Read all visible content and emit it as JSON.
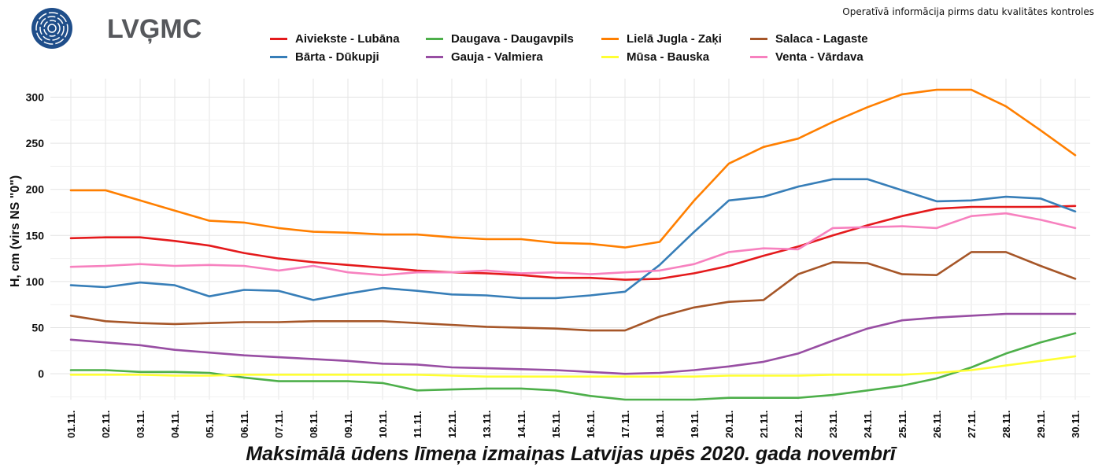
{
  "logo": {
    "text": "LVĢMC",
    "color": "#1f4e8a"
  },
  "notice": "Operatīvā informācija pirms datu kvalitātes kontroles",
  "chart_data": {
    "type": "line",
    "title": "Maksimālā ūdens līmeņa izmaiņas Latvijas upēs 2020. gada novembrī",
    "xlabel": "",
    "ylabel": "H, cm (virs NS \"0\")",
    "ylim": [
      -28,
      320
    ],
    "yticks": [
      0,
      50,
      100,
      150,
      200,
      250,
      300
    ],
    "grid": true,
    "legend_position": "top",
    "categories": [
      "01.11.",
      "02.11.",
      "03.11.",
      "04.11.",
      "05.11.",
      "06.11.",
      "07.11.",
      "08.11.",
      "09.11.",
      "10.11.",
      "11.11.",
      "12.11.",
      "13.11.",
      "14.11.",
      "15.11.",
      "16.11.",
      "17.11.",
      "18.11.",
      "19.11.",
      "20.11.",
      "21.11.",
      "22.11.",
      "23.11.",
      "24.11.",
      "25.11.",
      "26.11.",
      "27.11.",
      "28.11.",
      "29.11.",
      "30.11."
    ],
    "series": [
      {
        "name": "Aiviekste - Lubāna",
        "color": "#e41a1c",
        "values": [
          147,
          148,
          148,
          144,
          139,
          131,
          125,
          121,
          118,
          115,
          112,
          110,
          109,
          107,
          104,
          104,
          102,
          103,
          109,
          117,
          128,
          138,
          150,
          161,
          171,
          179,
          181,
          181,
          181,
          182
        ]
      },
      {
        "name": "Bārta - Dūkupji",
        "color": "#377eb8",
        "values": [
          96,
          94,
          99,
          96,
          84,
          91,
          90,
          80,
          87,
          93,
          90,
          86,
          85,
          82,
          82,
          85,
          89,
          118,
          154,
          188,
          192,
          203,
          211,
          211,
          199,
          187,
          188,
          192,
          190,
          176
        ]
      },
      {
        "name": "Daugava - Daugavpils",
        "color": "#4daf4a",
        "values": [
          4,
          4,
          2,
          2,
          1,
          -4,
          -8,
          -8,
          -8,
          -10,
          -18,
          -17,
          -16,
          -16,
          -18,
          -24,
          -28,
          -28,
          -28,
          -26,
          -26,
          -26,
          -23,
          -18,
          -13,
          -5,
          7,
          22,
          34,
          44
        ]
      },
      {
        "name": "Gauja - Valmiera",
        "color": "#984ea3",
        "values": [
          37,
          34,
          31,
          26,
          23,
          20,
          18,
          16,
          14,
          11,
          10,
          7,
          6,
          5,
          4,
          2,
          0,
          1,
          4,
          8,
          13,
          22,
          36,
          49,
          58,
          61,
          63,
          65,
          65,
          65
        ]
      },
      {
        "name": "Lielā Jugla - Zaķi",
        "color": "#ff7f00",
        "values": [
          199,
          199,
          188,
          177,
          166,
          164,
          158,
          154,
          153,
          151,
          151,
          148,
          146,
          146,
          142,
          141,
          137,
          143,
          188,
          228,
          246,
          255,
          273,
          289,
          303,
          308,
          308,
          290,
          264,
          237
        ]
      },
      {
        "name": "Mūsa - Bauska",
        "color": "#ffff33",
        "values": [
          -1,
          -1,
          -1,
          -2,
          -2,
          -1,
          -1,
          -1,
          -1,
          -1,
          -1,
          -2,
          -3,
          -3,
          -3,
          -3,
          -3,
          -3,
          -3,
          -2,
          -2,
          -2,
          -1,
          -1,
          -1,
          1,
          4,
          9,
          14,
          19
        ]
      },
      {
        "name": "Salaca - Lagaste",
        "color": "#a65628",
        "values": [
          63,
          57,
          55,
          54,
          55,
          56,
          56,
          57,
          57,
          57,
          55,
          53,
          51,
          50,
          49,
          47,
          47,
          62,
          72,
          78,
          80,
          108,
          121,
          120,
          108,
          107,
          132,
          132,
          117,
          103
        ]
      },
      {
        "name": "Venta - Vārdava",
        "color": "#f781bf",
        "values": [
          116,
          117,
          119,
          117,
          118,
          117,
          112,
          117,
          110,
          107,
          110,
          110,
          112,
          109,
          110,
          108,
          110,
          112,
          119,
          132,
          136,
          135,
          158,
          159,
          160,
          158,
          171,
          174,
          167,
          158
        ]
      }
    ]
  }
}
